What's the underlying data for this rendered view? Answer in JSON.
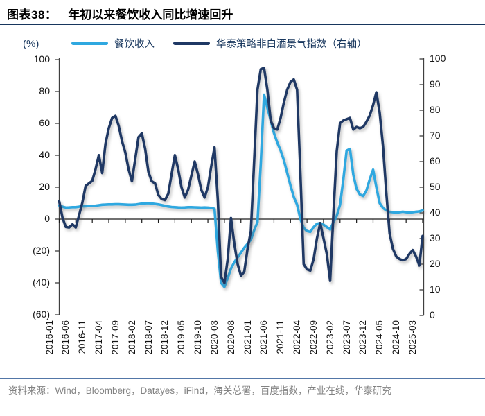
{
  "header": {
    "prefix": "图表38：",
    "title": "年初以来餐饮收入同比增速回升"
  },
  "legend": [
    {
      "label": "餐饮收入",
      "color": "#2FA8E0"
    },
    {
      "label": "华泰策略非白酒景气指数（右轴）",
      "color": "#1F3864"
    }
  ],
  "axes": {
    "unit": "(%)",
    "left_tick_labels": [
      "100",
      "80",
      "60",
      "40",
      "20",
      "0",
      "(20)",
      "(40)",
      "(60)"
    ],
    "right_tick_labels": [
      "100",
      "90",
      "80",
      "70",
      "60",
      "50",
      "40",
      "30",
      "20",
      "10",
      "0"
    ]
  },
  "source": "资料来源：Wind，Bloomberg，Datayes，iFind，海关总署，百度指数，产业在线，华泰研究",
  "colors": {
    "title_rule": "#17365d",
    "source_rule": "#5276a7",
    "axis_stroke": "#3f3f3f",
    "restaurant_line": "#2FA8E0",
    "index_line": "#1F3864"
  },
  "chart_data": {
    "type": "line",
    "title": "年初以来餐饮收入同比增速回升",
    "x_start_month": "2016-01",
    "x_tick_step_months": 5,
    "x_tick_labels": [
      "2016-01",
      "2016-06",
      "2016-11",
      "2017-04",
      "2017-09",
      "2018-02",
      "2018-07",
      "2018-12",
      "2019-05",
      "2019-10",
      "2020-03",
      "2020-08",
      "2021-01",
      "2021-06",
      "2021-11",
      "2022-04",
      "2022-09",
      "2023-02",
      "2023-07",
      "2023-12",
      "2024-05",
      "2024-10",
      "2025-03"
    ],
    "left_axis": {
      "min": -60,
      "max": 100,
      "tick": 20,
      "unit": "%"
    },
    "right_axis": {
      "min": 0,
      "max": 100,
      "tick": 10
    },
    "grid": false,
    "legend_position": "top",
    "series": [
      {
        "name": "餐饮收入",
        "axis": "left",
        "color": "#2FA8E0",
        "monthly_values": [
          8.5,
          7.8,
          7.2,
          7.3,
          7.5,
          7.5,
          7.8,
          8,
          8.1,
          8.2,
          8.3,
          8.4,
          8.7,
          9,
          9.1,
          9.2,
          9.2,
          9.3,
          9.3,
          9.2,
          9.1,
          9,
          9,
          9.1,
          9.4,
          9.7,
          9.9,
          10,
          9.8,
          9.5,
          9.2,
          8.8,
          8.3,
          7.9,
          7.6,
          7.5,
          7.3,
          7.2,
          7.3,
          7.5,
          7.5,
          7.4,
          7.3,
          7.2,
          7.3,
          7.2,
          7,
          6.5,
          -20,
          -40,
          -42.5,
          -37,
          -31,
          -27,
          -24,
          -21,
          -18,
          -15.5,
          -13,
          -7,
          -2,
          35,
          78,
          70,
          62,
          54,
          48,
          43,
          37,
          29,
          21,
          14,
          9,
          0,
          -5.5,
          -7.5,
          -8,
          -5,
          -3,
          -2.5,
          -3.5,
          -5,
          -6.5,
          -2,
          2,
          9,
          25,
          43,
          44,
          28,
          19,
          15.5,
          14.5,
          18,
          25,
          31,
          20,
          10,
          7,
          5.5,
          4.5,
          4.3,
          4.1,
          4.3,
          4.6,
          4.3,
          4.1,
          4.3,
          4.6,
          4.8,
          5.5
        ]
      },
      {
        "name": "华泰策略非白酒景气指数（右轴）",
        "axis": "right",
        "color": "#1F3864",
        "monthly_values": [
          44.5,
          38,
          34.5,
          34.3,
          35.5,
          34.3,
          39,
          44,
          50.5,
          51.5,
          52.5,
          57,
          62.5,
          55.5,
          67,
          73,
          77,
          77.8,
          74,
          68,
          63.5,
          57,
          52.3,
          61,
          69.5,
          71,
          65,
          56,
          52.3,
          51.5,
          47,
          45.4,
          45,
          47.5,
          55,
          62.5,
          57,
          50,
          46,
          49,
          54.5,
          60,
          55,
          49,
          46,
          50,
          58,
          65.5,
          45,
          15,
          12.7,
          22,
          38,
          28,
          20,
          15.5,
          17,
          26,
          33,
          60,
          88,
          96,
          96.5,
          88,
          76,
          73,
          72.5,
          77,
          83,
          88,
          91,
          92,
          88,
          55,
          20,
          18,
          17.5,
          22,
          30,
          36,
          30,
          24,
          13.5,
          40,
          64,
          75,
          76,
          76.5,
          77,
          72.5,
          73.5,
          73,
          73.5,
          75.5,
          78,
          82,
          87,
          79,
          66,
          48,
          32,
          26,
          23,
          22,
          21.5,
          22,
          24,
          25.5,
          23,
          19.5,
          31
        ]
      }
    ]
  }
}
